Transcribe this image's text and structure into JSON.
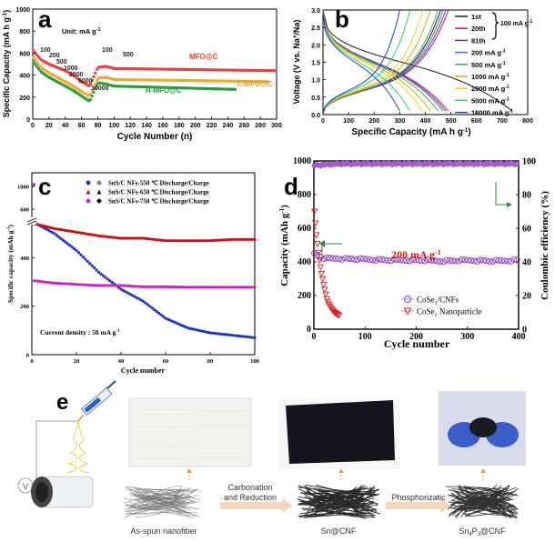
{
  "panel_a": {
    "letter": "a",
    "unit_note": "Unit: mA g",
    "unit_sup": "-1",
    "xlabel": "Cycle Number (n)",
    "ylabel": "Specific Capacity (mA h g",
    "ylabel_sup": "-1",
    "ylabel_tail": ")",
    "series_labels": [
      "MFO@C",
      "L-MFO@C",
      "H-MFO@C"
    ],
    "rate_labels": [
      "100",
      "200",
      "500",
      "1000",
      "2000",
      "5000",
      "10000",
      "100",
      "500"
    ],
    "colors": [
      "#e8413c",
      "#f0a82a",
      "#2b9a3c"
    ]
  },
  "panel_b": {
    "letter": "b",
    "xlabel": "Specific Capacity (mA h g",
    "xlabel_sup": "-1",
    "xlabel_tail": ")",
    "ylabel": "Voltage (V vs. Na",
    "ylabel_sup": "+",
    "ylabel_tail": "/Na)",
    "legend": [
      {
        "label": "1st",
        "color": "#1a1a1a"
      },
      {
        "label": "20th",
        "color": "#c2185b"
      },
      {
        "label": "81th",
        "color": "#7b2b8a"
      },
      {
        "label": "200 mA g",
        "color": "#3d6fd8"
      },
      {
        "label": "500 mA g",
        "color": "#37b24d"
      },
      {
        "label": "1000 mA g",
        "color": "#f59f00"
      },
      {
        "label": "2000 mA g",
        "color": "#d9e021"
      },
      {
        "label": "5000 mA g",
        "color": "#2ecc71"
      },
      {
        "label": "10000 mA g",
        "color": "#1e40c8"
      }
    ],
    "brace_label": "100 mA g",
    "unit_sup": "-1"
  },
  "panel_c": {
    "letter": "c",
    "xlabel": "Cycle number",
    "ylabel": "Specific capacity (mAh g",
    "ylabel_sup": "-1",
    "ylabel_tail": ")",
    "legend": [
      {
        "label": "SnS/C NFs-550 ℃  Discharge/Charge",
        "color": "#2233cc"
      },
      {
        "label": "SnS/C NFs-650 ℃  Discharge/Charge",
        "color": "#cc1111"
      },
      {
        "label": "SnS/C NFs-750 ℃  Discharge/Charge",
        "color": "#cc22cc"
      }
    ],
    "note": "Current density :  50 mA g",
    "note_sup": "-1"
  },
  "panel_d": {
    "letter": "d",
    "xlabel": "Cycle number",
    "ylabel_left": "Capacity (mAh g",
    "ylabel_left_sup": "-1",
    "ylabel_left_tail": ")",
    "ylabel_right": "Coulombic efficiency (%)",
    "rate_label": "200 mA g",
    "rate_sup": "-1",
    "legend": [
      {
        "label": "CoSe₂/CNFs",
        "color": "#8e3ac7"
      },
      {
        "label": "CoSe₂ Nanoparticle",
        "color": "#d62222"
      }
    ]
  },
  "panel_e": {
    "letter": "e",
    "stage_labels": [
      "As-spun nanofiber",
      "Sn@CNF",
      "Sn",
      "4",
      "P",
      "3",
      "@CNF"
    ],
    "step_labels": [
      "Carbonation",
      "and Reduction",
      "Phosphorizatic"
    ],
    "voltage_symbol": "V"
  },
  "chart_data": [
    {
      "type": "scatter",
      "panel": "a",
      "xlabel": "Cycle Number (n)",
      "ylabel": "Specific Capacity (mA h g-1)",
      "xlim": [
        0,
        300
      ],
      "ylim": [
        0,
        1000
      ],
      "xticks": [
        0,
        20,
        40,
        60,
        80,
        100,
        120,
        140,
        160,
        180,
        200,
        220,
        240,
        260,
        280,
        300
      ],
      "yticks": [
        0,
        200,
        400,
        600,
        800,
        1000
      ],
      "series": [
        {
          "name": "MFO@C",
          "x": [
            1,
            10,
            20,
            30,
            40,
            50,
            60,
            70,
            80,
            90,
            100,
            150,
            200,
            250,
            300
          ],
          "values": [
            620,
            540,
            500,
            470,
            440,
            400,
            340,
            300,
            470,
            480,
            460,
            455,
            450,
            445,
            440
          ]
        },
        {
          "name": "L-MFO@C",
          "x": [
            1,
            10,
            20,
            30,
            40,
            50,
            60,
            70,
            80,
            90,
            100,
            150,
            200,
            250,
            290
          ],
          "values": [
            560,
            470,
            420,
            380,
            340,
            300,
            250,
            210,
            370,
            380,
            360,
            355,
            350,
            345,
            340
          ]
        },
        {
          "name": "H-MFO@C",
          "x": [
            1,
            10,
            20,
            30,
            40,
            50,
            60,
            70,
            80,
            90,
            100,
            150,
            200,
            250
          ],
          "values": [
            520,
            430,
            380,
            340,
            300,
            260,
            210,
            160,
            330,
            320,
            300,
            290,
            280,
            270
          ]
        }
      ]
    },
    {
      "type": "line",
      "panel": "b",
      "xlabel": "Specific Capacity (mA h g-1)",
      "ylabel": "Voltage (V vs. Na+/Na)",
      "xlim": [
        0,
        800
      ],
      "ylim": [
        0,
        3.0
      ],
      "xticks": [
        0,
        100,
        200,
        300,
        400,
        500,
        600,
        700,
        800
      ],
      "yticks": [
        0.0,
        0.5,
        1.0,
        1.5,
        2.0,
        2.5,
        3.0
      ],
      "series": [
        {
          "name": "1st",
          "discharge_end": 740,
          "charge_end": 460
        },
        {
          "name": "20th",
          "discharge_end": 490,
          "charge_end": 490
        },
        {
          "name": "81th",
          "discharge_end": 480,
          "charge_end": 480
        },
        {
          "name": "200 mA g-1",
          "discharge_end": 470,
          "charge_end": 470
        },
        {
          "name": "500 mA g-1",
          "discharge_end": 450,
          "charge_end": 450
        },
        {
          "name": "1000 mA g-1",
          "discharge_end": 420,
          "charge_end": 420
        },
        {
          "name": "2000 mA g-1",
          "discharge_end": 390,
          "charge_end": 390
        },
        {
          "name": "5000 mA g-1",
          "discharge_end": 340,
          "charge_end": 340
        },
        {
          "name": "10000 mA g-1",
          "discharge_end": 300,
          "charge_end": 300
        }
      ]
    },
    {
      "type": "scatter",
      "panel": "c",
      "xlabel": "Cycle number",
      "ylabel": "Specific capacity (mAh g-1)",
      "xlim": [
        0,
        100
      ],
      "ylim": [
        0,
        1000
      ],
      "xticks": [
        0,
        20,
        40,
        60,
        80,
        100
      ],
      "yticks": [
        0,
        200,
        400,
        600,
        800,
        1000
      ],
      "series": [
        {
          "name": "SnS/C NFs-550 ℃",
          "x": [
            1,
            10,
            20,
            30,
            40,
            50,
            60,
            70,
            80,
            90,
            100
          ],
          "values": [
            545,
            500,
            430,
            340,
            270,
            220,
            150,
            110,
            90,
            80,
            70
          ]
        },
        {
          "name": "SnS/C NFs-650 ℃",
          "x": [
            1,
            10,
            20,
            30,
            40,
            50,
            60,
            70,
            80,
            90,
            100
          ],
          "values": [
            540,
            520,
            505,
            490,
            480,
            480,
            470,
            470,
            470,
            475,
            475
          ]
        },
        {
          "name": "SnS/C NFs-750 ℃",
          "x": [
            1,
            10,
            20,
            30,
            40,
            50,
            60,
            70,
            80,
            90,
            100
          ],
          "values": [
            305,
            295,
            290,
            285,
            285,
            280,
            280,
            278,
            278,
            278,
            278
          ]
        }
      ]
    },
    {
      "type": "scatter",
      "panel": "d",
      "xlabel": "Cycle number",
      "ylabel": "Capacity (mAh g-1)",
      "ylabel_right": "Coulombic efficiency (%)",
      "xlim": [
        0,
        400
      ],
      "ylim": [
        0,
        1000
      ],
      "ylim_right": [
        0,
        100
      ],
      "xticks": [
        0,
        100,
        200,
        300,
        400
      ],
      "yticks": [
        0,
        200,
        400,
        600,
        800,
        1000
      ],
      "yticks_right": [
        0,
        20,
        40,
        60,
        80,
        100
      ],
      "series": [
        {
          "name": "CoSe₂/CNFs",
          "x": [
            1,
            20,
            50,
            100,
            150,
            200,
            250,
            300,
            350,
            400
          ],
          "values": [
            450,
            420,
            420,
            415,
            410,
            410,
            405,
            410,
            405,
            410
          ]
        },
        {
          "name": "CoSe₂ Nanoparticle",
          "x": [
            1,
            5,
            10,
            15,
            20,
            25,
            30,
            40,
            50
          ],
          "values": [
            700,
            560,
            430,
            330,
            250,
            180,
            140,
            100,
            80
          ]
        },
        {
          "name": "CoSe₂/CNFs coulombic efficiency",
          "x": [
            1,
            50,
            100,
            150,
            200,
            250,
            300,
            350,
            400
          ],
          "values": [
            98,
            99,
            99,
            99,
            99,
            99,
            99,
            99,
            99
          ]
        }
      ]
    }
  ]
}
